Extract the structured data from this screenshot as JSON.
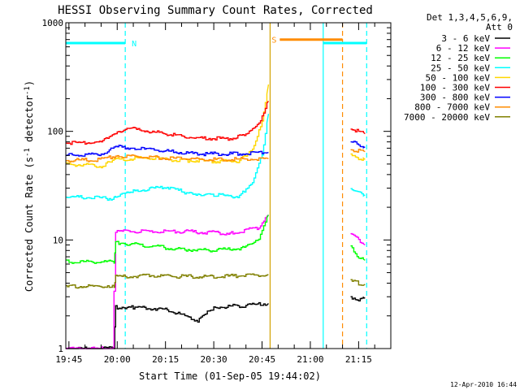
{
  "chart_data": {
    "type": "line",
    "title": "HESSI Observing Summary Count Rates, Corrected",
    "xlabel": "Start Time (01-Sep-05 19:44:02)",
    "ylabel": "Corrected Count Rate (s-1 detector-1)",
    "ylabel_parts": {
      "a": "Corrected Count Rate (s",
      "sup1": "-1",
      "b": " detector",
      "sup2": "-1",
      "c": ")"
    },
    "y_scale": "log",
    "ylim": [
      1,
      1000
    ],
    "xlim": [
      "19:44:02",
      "21:25:00"
    ],
    "x_ticks": [
      "19:45",
      "20:00",
      "20:15",
      "20:30",
      "20:45",
      "21:00",
      "21:15"
    ],
    "y_ticks": [
      "1",
      "10",
      "100",
      "1000"
    ],
    "legend_header": [
      "Det 1,3,4,5,6,9,",
      "Att 0"
    ],
    "legend_position": "right",
    "timestamp": "12-Apr-2010 16:44",
    "series": [
      {
        "name": "3 - 6 keV",
        "color": "#000000",
        "segments": [
          [
            [
              "19:44:02",
              1.0
            ],
            [
              "19:59:00",
              1.0
            ],
            [
              "19:59:30",
              2.4
            ],
            [
              "20:05:00",
              2.4
            ],
            [
              "20:15:00",
              2.3
            ],
            [
              "20:25:00",
              1.8
            ],
            [
              "20:30:00",
              2.4
            ],
            [
              "20:40:00",
              2.5
            ],
            [
              "20:47:00",
              2.6
            ]
          ],
          [
            [
              "21:12:30",
              3.0
            ],
            [
              "21:15:00",
              2.8
            ],
            [
              "21:17:00",
              2.9
            ]
          ]
        ]
      },
      {
        "name": "6 - 12 keV",
        "color": "#ff00ff",
        "segments": [
          [
            [
              "19:44:02",
              1.0
            ],
            [
              "19:58:30",
              1.0
            ],
            [
              "19:59:30",
              12.0
            ],
            [
              "20:10:00",
              12.0
            ],
            [
              "20:20:00",
              12.0
            ],
            [
              "20:35:00",
              11.5
            ],
            [
              "20:44:00",
              13.0
            ],
            [
              "20:47:00",
              17.0
            ]
          ],
          [
            [
              "21:12:30",
              11.5
            ],
            [
              "21:15:00",
              10.0
            ],
            [
              "21:17:00",
              9.0
            ]
          ]
        ]
      },
      {
        "name": "12 - 25 keV",
        "color": "#00ff00",
        "segments": [
          [
            [
              "19:44:02",
              6.3
            ],
            [
              "19:59:00",
              6.3
            ],
            [
              "19:59:30",
              9.5
            ],
            [
              "20:10:00",
              8.8
            ],
            [
              "20:20:00",
              8.2
            ],
            [
              "20:30:00",
              8.0
            ],
            [
              "20:40:00",
              8.5
            ],
            [
              "20:44:00",
              10.5
            ],
            [
              "20:47:00",
              17.0
            ]
          ],
          [
            [
              "21:12:30",
              8.5
            ],
            [
              "21:15:00",
              7.0
            ],
            [
              "21:17:00",
              6.5
            ]
          ]
        ]
      },
      {
        "name": "25 - 50 keV",
        "color": "#00ffff",
        "segments": [
          [
            [
              "19:44:02",
              25.0
            ],
            [
              "19:59:00",
              24.0
            ],
            [
              "19:59:30",
              25.0
            ],
            [
              "20:05:00",
              28.0
            ],
            [
              "20:15:00",
              31.0
            ],
            [
              "20:22:00",
              27.0
            ],
            [
              "20:30:00",
              26.0
            ],
            [
              "20:38:00",
              25.0
            ],
            [
              "20:42:00",
              35.0
            ],
            [
              "20:45:00",
              60.0
            ],
            [
              "20:47:00",
              145.0
            ]
          ],
          [
            [
              "21:12:30",
              30.0
            ],
            [
              "21:15:00",
              27.0
            ],
            [
              "21:17:00",
              26.0
            ]
          ]
        ]
      },
      {
        "name": "50 - 100 keV",
        "color": "#ffd700",
        "segments": [
          [
            [
              "19:44:02",
              50.0
            ],
            [
              "19:55:00",
              48.0
            ],
            [
              "20:00:00",
              55.0
            ],
            [
              "20:10:00",
              57.0
            ],
            [
              "20:20:00",
              54.0
            ],
            [
              "20:30:00",
              53.0
            ],
            [
              "20:38:00",
              53.0
            ],
            [
              "20:42:00",
              70.0
            ],
            [
              "20:45:00",
              120.0
            ],
            [
              "20:47:00",
              270.0
            ]
          ],
          [
            [
              "21:12:30",
              60.0
            ],
            [
              "21:15:00",
              57.0
            ],
            [
              "21:17:00",
              55.0
            ]
          ]
        ]
      },
      {
        "name": "100 - 300 keV",
        "color": "#ff0000",
        "segments": [
          [
            [
              "19:44:02",
              78.0
            ],
            [
              "19:55:00",
              80.0
            ],
            [
              "20:00:00",
              100.0
            ],
            [
              "20:05:00",
              105.0
            ],
            [
              "20:15:00",
              95.0
            ],
            [
              "20:25:00",
              86.0
            ],
            [
              "20:35:00",
              86.0
            ],
            [
              "20:40:00",
              92.0
            ],
            [
              "20:44:00",
              120.0
            ],
            [
              "20:47:00",
              190.0
            ]
          ],
          [
            [
              "21:12:30",
              105.0
            ],
            [
              "21:15:00",
              100.0
            ],
            [
              "21:17:00",
              95.0
            ]
          ]
        ]
      },
      {
        "name": "300 - 800 keV",
        "color": "#0000ff",
        "segments": [
          [
            [
              "19:44:02",
              60.0
            ],
            [
              "19:55:00",
              62.0
            ],
            [
              "20:00:00",
              72.0
            ],
            [
              "20:05:00",
              70.0
            ],
            [
              "20:15:00",
              66.0
            ],
            [
              "20:25:00",
              62.0
            ],
            [
              "20:35:00",
              62.0
            ],
            [
              "20:47:00",
              64.0
            ]
          ],
          [
            [
              "21:12:30",
              80.0
            ],
            [
              "21:15:00",
              75.0
            ],
            [
              "21:17:00",
              72.0
            ]
          ]
        ]
      },
      {
        "name": "800 - 7000 keV",
        "color": "#ff8c00",
        "segments": [
          [
            [
              "19:44:02",
              54.0
            ],
            [
              "19:55:00",
              55.0
            ],
            [
              "20:00:00",
              60.0
            ],
            [
              "20:10:00",
              58.0
            ],
            [
              "20:20:00",
              56.0
            ],
            [
              "20:30:00",
              55.0
            ],
            [
              "20:47:00",
              56.0
            ]
          ],
          [
            [
              "21:12:30",
              68.0
            ],
            [
              "21:15:00",
              66.0
            ],
            [
              "21:17:00",
              65.0
            ]
          ]
        ]
      },
      {
        "name": "7000 - 20000 keV",
        "color": "#808000",
        "segments": [
          [
            [
              "19:44:02",
              3.7
            ],
            [
              "19:59:00",
              3.8
            ],
            [
              "19:59:30",
              4.6
            ],
            [
              "20:10:00",
              4.7
            ],
            [
              "20:20:00",
              4.6
            ],
            [
              "20:30:00",
              4.6
            ],
            [
              "20:40:00",
              4.7
            ],
            [
              "20:47:00",
              4.8
            ]
          ],
          [
            [
              "21:12:30",
              4.2
            ],
            [
              "21:15:00",
              4.0
            ],
            [
              "21:17:00",
              3.9
            ]
          ]
        ]
      }
    ],
    "annotations": [
      {
        "type": "state_bar",
        "label": "N",
        "color": "#00ffff",
        "y": 650,
        "spans": [
          [
            "19:44:02",
            "20:02:30"
          ],
          [
            "21:04:00",
            "21:17:30"
          ]
        ]
      },
      {
        "type": "state_bar",
        "label": "S",
        "color": "#ff8c00",
        "y": 700,
        "spans": [
          [
            "20:50:30",
            "21:10:00"
          ]
        ]
      }
    ],
    "vertical_lines": [
      {
        "time": "20:02:30",
        "color": "#00ffff",
        "style": "dashed"
      },
      {
        "time": "20:47:30",
        "color": "#d2a000",
        "style": "solid"
      },
      {
        "time": "21:04:00",
        "color": "#00ffff",
        "style": "solid"
      },
      {
        "time": "21:10:00",
        "color": "#ff8c00",
        "style": "dashed"
      },
      {
        "time": "21:17:30",
        "color": "#00ffff",
        "style": "dashed"
      }
    ]
  }
}
